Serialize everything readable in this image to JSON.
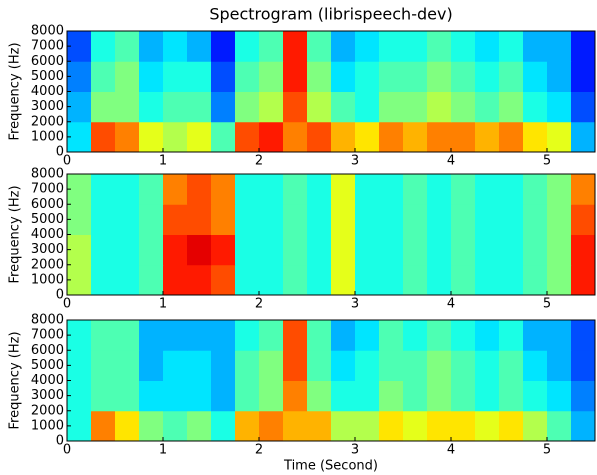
{
  "chart_data": [
    {
      "type": "heatmap",
      "title": "Spectrogram (librispeech-dev)",
      "ylabel": "Frequency (Hz)",
      "colormap": "jet",
      "xlim": [
        0,
        5.5
      ],
      "xticks": [
        0,
        1,
        2,
        3,
        4,
        5
      ],
      "ylim": [
        0,
        8000
      ],
      "yticks": [
        0,
        1000,
        2000,
        3000,
        4000,
        5000,
        6000,
        7000,
        8000
      ],
      "x": [
        0,
        0.25,
        0.5,
        0.75,
        1,
        1.25,
        1.5,
        1.75,
        2,
        2.25,
        2.5,
        2.75,
        3,
        3.25,
        3.5,
        3.75,
        4,
        4.25,
        4.5,
        4.75,
        5,
        5.25
      ],
      "y": [
        0,
        2000,
        4000,
        6000
      ],
      "values": [
        [
          0.35,
          0.8,
          0.75,
          0.6,
          0.55,
          0.6,
          0.45,
          0.8,
          0.85,
          0.75,
          0.8,
          0.7,
          0.65,
          0.75,
          0.7,
          0.75,
          0.75,
          0.7,
          0.75,
          0.65,
          0.6,
          0.3
        ],
        [
          0.3,
          0.5,
          0.5,
          0.4,
          0.45,
          0.45,
          0.25,
          0.5,
          0.55,
          0.8,
          0.55,
          0.45,
          0.4,
          0.5,
          0.5,
          0.55,
          0.5,
          0.45,
          0.5,
          0.4,
          0.35,
          0.2
        ],
        [
          0.25,
          0.45,
          0.5,
          0.35,
          0.4,
          0.4,
          0.2,
          0.45,
          0.5,
          0.85,
          0.5,
          0.35,
          0.4,
          0.45,
          0.45,
          0.5,
          0.45,
          0.4,
          0.45,
          0.35,
          0.3,
          0.15
        ],
        [
          0.2,
          0.4,
          0.45,
          0.3,
          0.35,
          0.3,
          0.15,
          0.4,
          0.45,
          0.85,
          0.45,
          0.3,
          0.35,
          0.4,
          0.4,
          0.45,
          0.4,
          0.35,
          0.4,
          0.3,
          0.3,
          0.15
        ]
      ]
    },
    {
      "type": "heatmap",
      "ylabel": "Frequency (Hz)",
      "colormap": "jet",
      "xlim": [
        0,
        5.5
      ],
      "xticks": [
        0,
        1,
        2,
        3,
        4,
        5
      ],
      "ylim": [
        0,
        8000
      ],
      "yticks": [
        0,
        1000,
        2000,
        3000,
        4000,
        5000,
        6000,
        7000,
        8000
      ],
      "x": [
        0,
        0.25,
        0.5,
        0.75,
        1,
        1.25,
        1.5,
        1.75,
        2,
        2.25,
        2.5,
        2.75,
        3,
        3.25,
        3.5,
        3.75,
        4,
        4.25,
        4.5,
        4.75,
        5,
        5.25
      ],
      "y": [
        0,
        2000,
        4000,
        6000
      ],
      "values": [
        [
          0.55,
          0.4,
          0.4,
          0.45,
          0.85,
          0.85,
          0.8,
          0.4,
          0.4,
          0.45,
          0.4,
          0.6,
          0.4,
          0.4,
          0.45,
          0.4,
          0.45,
          0.4,
          0.4,
          0.45,
          0.5,
          0.85
        ],
        [
          0.55,
          0.4,
          0.4,
          0.45,
          0.85,
          0.9,
          0.85,
          0.4,
          0.4,
          0.45,
          0.4,
          0.6,
          0.4,
          0.4,
          0.45,
          0.4,
          0.45,
          0.4,
          0.4,
          0.45,
          0.5,
          0.85
        ],
        [
          0.5,
          0.4,
          0.4,
          0.45,
          0.8,
          0.8,
          0.75,
          0.4,
          0.4,
          0.45,
          0.4,
          0.6,
          0.4,
          0.4,
          0.45,
          0.4,
          0.45,
          0.4,
          0.4,
          0.45,
          0.5,
          0.8
        ],
        [
          0.5,
          0.4,
          0.4,
          0.45,
          0.75,
          0.8,
          0.75,
          0.4,
          0.4,
          0.45,
          0.4,
          0.6,
          0.4,
          0.4,
          0.45,
          0.4,
          0.45,
          0.4,
          0.4,
          0.45,
          0.5,
          0.75
        ]
      ]
    },
    {
      "type": "heatmap",
      "ylabel": "Frequency (Hz)",
      "xlabel": "Time (Second)",
      "colormap": "jet",
      "xlim": [
        0,
        5.5
      ],
      "xticks": [
        0,
        1,
        2,
        3,
        4,
        5
      ],
      "ylim": [
        0,
        8000
      ],
      "yticks": [
        0,
        1000,
        2000,
        3000,
        4000,
        5000,
        6000,
        7000,
        8000
      ],
      "x": [
        0,
        0.25,
        0.5,
        0.75,
        1,
        1.25,
        1.5,
        1.75,
        2,
        2.25,
        2.5,
        2.75,
        3,
        3.25,
        3.5,
        3.75,
        4,
        4.25,
        4.5,
        4.75,
        5,
        5.25
      ],
      "y": [
        0,
        2000,
        4000,
        6000
      ],
      "values": [
        [
          0.4,
          0.75,
          0.65,
          0.5,
          0.45,
          0.5,
          0.4,
          0.7,
          0.75,
          0.7,
          0.7,
          0.55,
          0.55,
          0.65,
          0.6,
          0.65,
          0.65,
          0.6,
          0.65,
          0.55,
          0.45,
          0.3
        ],
        [
          0.4,
          0.45,
          0.45,
          0.35,
          0.35,
          0.35,
          0.3,
          0.45,
          0.5,
          0.75,
          0.5,
          0.4,
          0.4,
          0.5,
          0.45,
          0.5,
          0.45,
          0.4,
          0.45,
          0.4,
          0.35,
          0.25
        ],
        [
          0.4,
          0.45,
          0.45,
          0.3,
          0.35,
          0.35,
          0.3,
          0.45,
          0.5,
          0.8,
          0.45,
          0.35,
          0.4,
          0.45,
          0.45,
          0.5,
          0.45,
          0.4,
          0.45,
          0.35,
          0.3,
          0.2
        ],
        [
          0.4,
          0.45,
          0.45,
          0.3,
          0.3,
          0.3,
          0.3,
          0.4,
          0.45,
          0.8,
          0.45,
          0.3,
          0.35,
          0.45,
          0.4,
          0.45,
          0.4,
          0.35,
          0.4,
          0.3,
          0.3,
          0.2
        ]
      ]
    }
  ]
}
